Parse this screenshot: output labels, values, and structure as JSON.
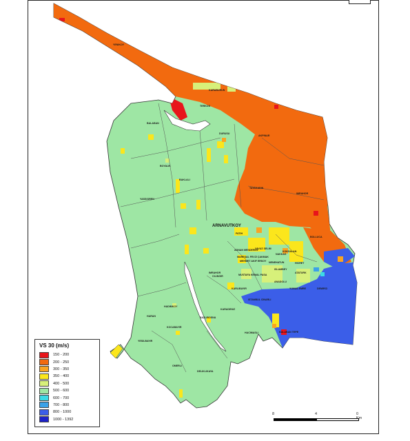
{
  "legend": {
    "title": "VS 30 (m/s)",
    "items": [
      {
        "label": "150 - 200",
        "color": "#e8151b"
      },
      {
        "label": "200 - 250",
        "color": "#f26a0f"
      },
      {
        "label": "300 - 350",
        "color": "#f9a422"
      },
      {
        "label": "350 - 400",
        "color": "#fbe61c"
      },
      {
        "label": "400 - 500",
        "color": "#d7f07a"
      },
      {
        "label": "500 - 600",
        "color": "#9ee6a4"
      },
      {
        "label": "600 - 700",
        "color": "#3cdae6"
      },
      {
        "label": "700 - 800",
        "color": "#3ba2e8"
      },
      {
        "label": "800 - 1000",
        "color": "#3b5ee8"
      },
      {
        "label": "1000 - 1392",
        "color": "#1d22c9"
      }
    ]
  },
  "district": "ARNAVUTKOY",
  "places": [
    "YENIKOY",
    "KARABURUN",
    "TERKOS",
    "DURUSU",
    "BALABAN",
    "BOYALIK",
    "BAKLALI",
    "YASSIOREN",
    "AKPINAR",
    "TAYAKADIN",
    "IMRAHOR",
    "ISTANBUL CINARLI",
    "FATIH",
    "ADNAN MENDERES",
    "HADIMKOY",
    "HARAN",
    "IMRAHOR",
    "SAZLIBOSNA",
    "NAKKAS",
    "DELIKLIKAYA",
    "OMERLI",
    "YESILBAYIR",
    "KOCABAYIR",
    "BOLLUCA",
    "HACIMASLI",
    "CILINGIR",
    "KARLIBAYIR",
    "MUSTAFA KEMAL PASA",
    "KARADENIZ",
    "ISLAMBEY",
    "ANADOLU",
    "NENEHATUN",
    "HICRET",
    "ATATURK",
    "DEMIRCI",
    "BALABAN TEPE",
    "YAVUZ SELIM",
    "KOKSALAN",
    "MAREŞAL FEVZI ÇAKMAK",
    "MEHMET AKIF ERSOY",
    "YUNUS EMRE",
    "YASSIOREN"
  ],
  "scale": {
    "labels": [
      "8",
      "4",
      "0 Km"
    ]
  },
  "colors": {
    "water": "#ffffff",
    "boundary": "#555555",
    "outline": "#333333"
  }
}
